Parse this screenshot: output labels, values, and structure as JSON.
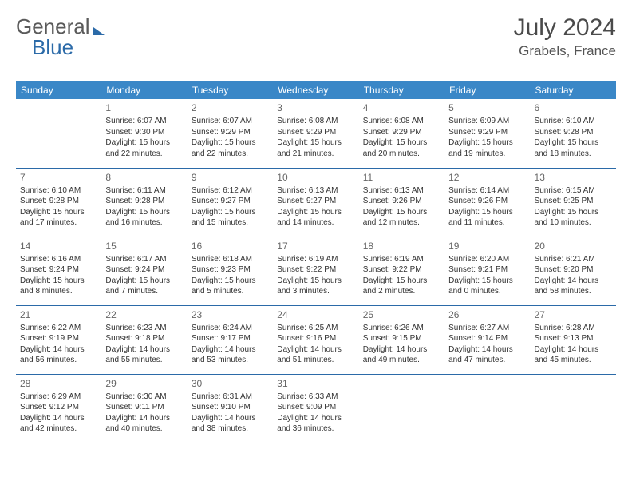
{
  "logo": {
    "part1": "General",
    "part2": "Blue"
  },
  "title": "July 2024",
  "location": "Grabels, France",
  "weekdays": [
    "Sunday",
    "Monday",
    "Tuesday",
    "Wednesday",
    "Thursday",
    "Friday",
    "Saturday"
  ],
  "colors": {
    "header_bg": "#3a87c7",
    "header_text": "#ffffff",
    "row_divider": "#2b6aa8",
    "text": "#333333",
    "title_text": "#4a4a4a",
    "logo_gray": "#5a5a5a",
    "logo_blue": "#2b6aa8"
  },
  "grid": [
    [
      null,
      {
        "n": "1",
        "sunrise": "6:07 AM",
        "sunset": "9:30 PM",
        "daylight": "15 hours and 22 minutes."
      },
      {
        "n": "2",
        "sunrise": "6:07 AM",
        "sunset": "9:29 PM",
        "daylight": "15 hours and 22 minutes."
      },
      {
        "n": "3",
        "sunrise": "6:08 AM",
        "sunset": "9:29 PM",
        "daylight": "15 hours and 21 minutes."
      },
      {
        "n": "4",
        "sunrise": "6:08 AM",
        "sunset": "9:29 PM",
        "daylight": "15 hours and 20 minutes."
      },
      {
        "n": "5",
        "sunrise": "6:09 AM",
        "sunset": "9:29 PM",
        "daylight": "15 hours and 19 minutes."
      },
      {
        "n": "6",
        "sunrise": "6:10 AM",
        "sunset": "9:28 PM",
        "daylight": "15 hours and 18 minutes."
      }
    ],
    [
      {
        "n": "7",
        "sunrise": "6:10 AM",
        "sunset": "9:28 PM",
        "daylight": "15 hours and 17 minutes."
      },
      {
        "n": "8",
        "sunrise": "6:11 AM",
        "sunset": "9:28 PM",
        "daylight": "15 hours and 16 minutes."
      },
      {
        "n": "9",
        "sunrise": "6:12 AM",
        "sunset": "9:27 PM",
        "daylight": "15 hours and 15 minutes."
      },
      {
        "n": "10",
        "sunrise": "6:13 AM",
        "sunset": "9:27 PM",
        "daylight": "15 hours and 14 minutes."
      },
      {
        "n": "11",
        "sunrise": "6:13 AM",
        "sunset": "9:26 PM",
        "daylight": "15 hours and 12 minutes."
      },
      {
        "n": "12",
        "sunrise": "6:14 AM",
        "sunset": "9:26 PM",
        "daylight": "15 hours and 11 minutes."
      },
      {
        "n": "13",
        "sunrise": "6:15 AM",
        "sunset": "9:25 PM",
        "daylight": "15 hours and 10 minutes."
      }
    ],
    [
      {
        "n": "14",
        "sunrise": "6:16 AM",
        "sunset": "9:24 PM",
        "daylight": "15 hours and 8 minutes."
      },
      {
        "n": "15",
        "sunrise": "6:17 AM",
        "sunset": "9:24 PM",
        "daylight": "15 hours and 7 minutes."
      },
      {
        "n": "16",
        "sunrise": "6:18 AM",
        "sunset": "9:23 PM",
        "daylight": "15 hours and 5 minutes."
      },
      {
        "n": "17",
        "sunrise": "6:19 AM",
        "sunset": "9:22 PM",
        "daylight": "15 hours and 3 minutes."
      },
      {
        "n": "18",
        "sunrise": "6:19 AM",
        "sunset": "9:22 PM",
        "daylight": "15 hours and 2 minutes."
      },
      {
        "n": "19",
        "sunrise": "6:20 AM",
        "sunset": "9:21 PM",
        "daylight": "15 hours and 0 minutes."
      },
      {
        "n": "20",
        "sunrise": "6:21 AM",
        "sunset": "9:20 PM",
        "daylight": "14 hours and 58 minutes."
      }
    ],
    [
      {
        "n": "21",
        "sunrise": "6:22 AM",
        "sunset": "9:19 PM",
        "daylight": "14 hours and 56 minutes."
      },
      {
        "n": "22",
        "sunrise": "6:23 AM",
        "sunset": "9:18 PM",
        "daylight": "14 hours and 55 minutes."
      },
      {
        "n": "23",
        "sunrise": "6:24 AM",
        "sunset": "9:17 PM",
        "daylight": "14 hours and 53 minutes."
      },
      {
        "n": "24",
        "sunrise": "6:25 AM",
        "sunset": "9:16 PM",
        "daylight": "14 hours and 51 minutes."
      },
      {
        "n": "25",
        "sunrise": "6:26 AM",
        "sunset": "9:15 PM",
        "daylight": "14 hours and 49 minutes."
      },
      {
        "n": "26",
        "sunrise": "6:27 AM",
        "sunset": "9:14 PM",
        "daylight": "14 hours and 47 minutes."
      },
      {
        "n": "27",
        "sunrise": "6:28 AM",
        "sunset": "9:13 PM",
        "daylight": "14 hours and 45 minutes."
      }
    ],
    [
      {
        "n": "28",
        "sunrise": "6:29 AM",
        "sunset": "9:12 PM",
        "daylight": "14 hours and 42 minutes."
      },
      {
        "n": "29",
        "sunrise": "6:30 AM",
        "sunset": "9:11 PM",
        "daylight": "14 hours and 40 minutes."
      },
      {
        "n": "30",
        "sunrise": "6:31 AM",
        "sunset": "9:10 PM",
        "daylight": "14 hours and 38 minutes."
      },
      {
        "n": "31",
        "sunrise": "6:33 AM",
        "sunset": "9:09 PM",
        "daylight": "14 hours and 36 minutes."
      },
      null,
      null,
      null
    ]
  ],
  "labels": {
    "sunrise": "Sunrise:",
    "sunset": "Sunset:",
    "daylight": "Daylight:"
  }
}
